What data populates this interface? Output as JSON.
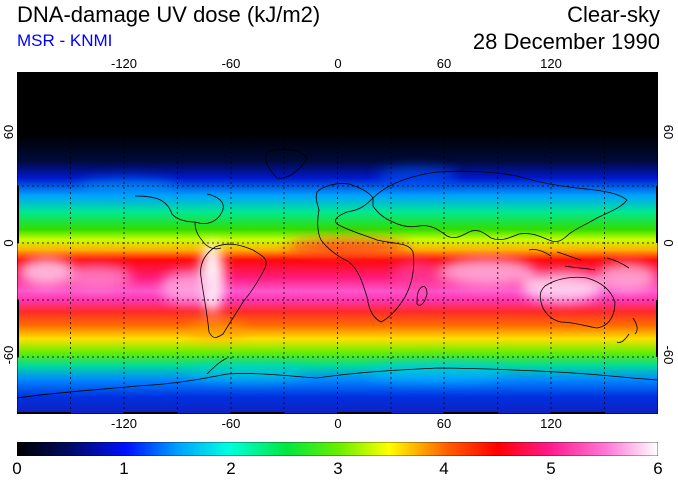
{
  "header": {
    "title": "DNA-damage UV dose (kJ/m2)",
    "source": "MSR - KNMI",
    "condition": "Clear-sky",
    "date": "28 December 1990"
  },
  "colors": {
    "source_text": "#0000ff",
    "frame": "#000000",
    "coast": "#000000",
    "graticule": "#000000"
  },
  "map": {
    "lon_ticks": [
      "-120",
      "-60",
      "0",
      "60",
      "120"
    ],
    "lat_ticks_left": [
      "60",
      "0",
      "-60"
    ],
    "lat_ticks_right": [
      "60",
      "0",
      "-60"
    ],
    "lon_values": [
      -120,
      -60,
      0,
      60,
      120
    ],
    "lat_values": [
      60,
      0,
      -60
    ],
    "lon_range": [
      -180,
      180
    ],
    "lat_range": [
      -90,
      90
    ]
  },
  "colorbar": {
    "labels": [
      "0",
      "1",
      "2",
      "3",
      "4",
      "5",
      "6"
    ],
    "min": 0,
    "max": 6
  },
  "chart_data": {
    "type": "heatmap",
    "title": "DNA-damage UV dose (kJ/m2)",
    "variable": "Clear-sky DNA-damage UV dose",
    "units": "kJ/m2",
    "date": "28 December 1990",
    "lon_range": [
      -180,
      180
    ],
    "lat_range": [
      -90,
      90
    ],
    "color_scale": [
      0,
      6
    ],
    "zonal_profile": [
      {
        "lat": 90,
        "dose": 0.0
      },
      {
        "lat": 60,
        "dose": 0.0
      },
      {
        "lat": 50,
        "dose": 0.3
      },
      {
        "lat": 40,
        "dose": 0.9
      },
      {
        "lat": 30,
        "dose": 1.9
      },
      {
        "lat": 20,
        "dose": 2.9
      },
      {
        "lat": 10,
        "dose": 3.8
      },
      {
        "lat": 0,
        "dose": 4.5
      },
      {
        "lat": -10,
        "dose": 5.2
      },
      {
        "lat": -20,
        "dose": 5.6
      },
      {
        "lat": -30,
        "dose": 5.0
      },
      {
        "lat": -40,
        "dose": 4.0
      },
      {
        "lat": -50,
        "dose": 3.2
      },
      {
        "lat": -60,
        "dose": 2.5
      },
      {
        "lat": -70,
        "dose": 1.9
      },
      {
        "lat": -80,
        "dose": 1.5
      },
      {
        "lat": -90,
        "dose": 1.4
      }
    ]
  }
}
